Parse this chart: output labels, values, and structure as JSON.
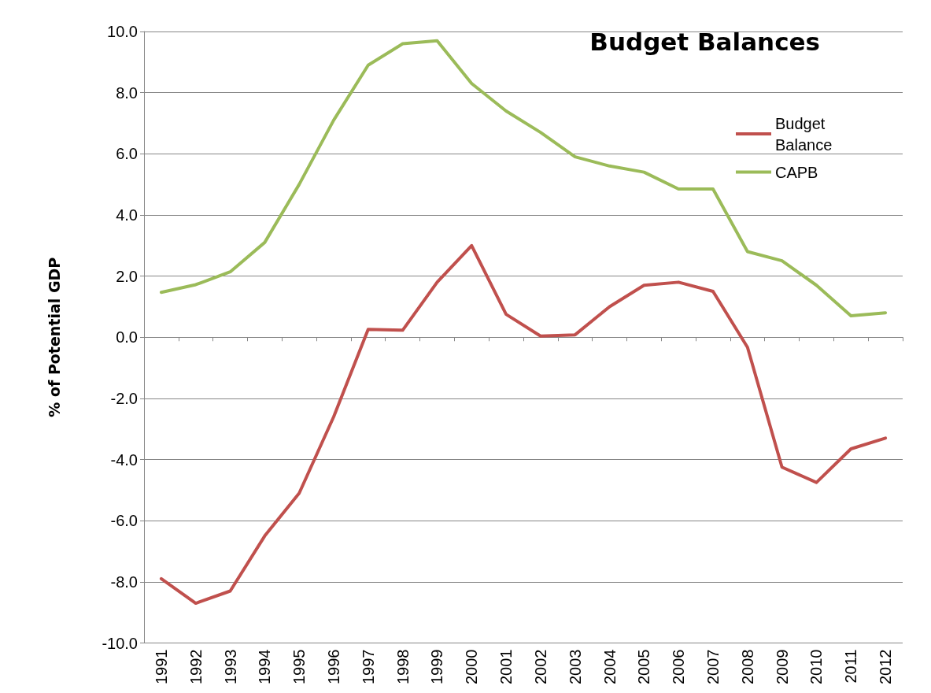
{
  "chart_data": {
    "type": "line",
    "title": "Budget Balances",
    "ylabel": "% of Potential GDP",
    "categories": [
      "1991",
      "1992",
      "1993",
      "1994",
      "1995",
      "1996",
      "1997",
      "1998",
      "1999",
      "2000",
      "2001",
      "2002",
      "2003",
      "2004",
      "2005",
      "2006",
      "2007",
      "2008",
      "2009",
      "2010",
      "2011",
      "2012"
    ],
    "series": [
      {
        "name": "Budget Balance",
        "color": "#c0504d",
        "values": [
          -7.9,
          -8.7,
          -8.3,
          -6.5,
          -5.1,
          -2.6,
          0.26,
          0.23,
          1.8,
          3.0,
          0.75,
          0.04,
          0.08,
          1.0,
          1.7,
          1.8,
          1.5,
          -0.33,
          -4.25,
          -4.75,
          -3.65,
          -3.3
        ]
      },
      {
        "name": "CAPB",
        "color": "#9bbb59",
        "values": [
          1.47,
          1.72,
          2.14,
          3.1,
          5.0,
          7.1,
          8.9,
          9.6,
          9.7,
          8.3,
          7.4,
          6.7,
          5.9,
          5.6,
          5.4,
          4.85,
          4.85,
          2.8,
          2.5,
          1.7,
          0.7,
          0.8
        ]
      }
    ],
    "ylim": [
      -10,
      10
    ],
    "yticks": [
      {
        "value": -10,
        "label": "-10.0"
      },
      {
        "value": -8,
        "label": "-8.0"
      },
      {
        "value": -6,
        "label": "-6.0"
      },
      {
        "value": -4,
        "label": "-4.0"
      },
      {
        "value": -2,
        "label": "-2.0"
      },
      {
        "value": 0,
        "label": "0.0"
      },
      {
        "value": 2,
        "label": "2.0"
      },
      {
        "value": 4,
        "label": "4.0"
      },
      {
        "value": 6,
        "label": "6.0"
      },
      {
        "value": 8,
        "label": "8.0"
      },
      {
        "value": 10,
        "label": "10.0"
      }
    ],
    "grid": "y",
    "legend": "top right",
    "marker": "none",
    "line_style": "solid"
  }
}
